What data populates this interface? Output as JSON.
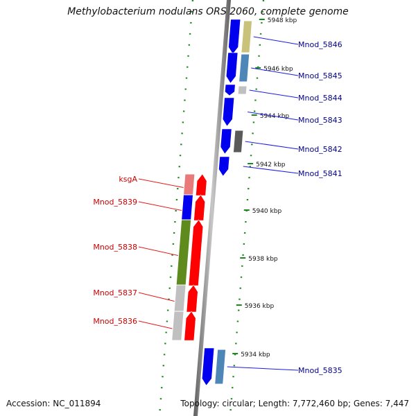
{
  "header": {
    "title": "Methylobacterium nodulans ORS 2060, complete genome"
  },
  "footer": {
    "accession": "Accession: NC_011894",
    "topology": "Topology: circular; Length: 7,772,460 bp; Genes: 7,447"
  },
  "ticks": [
    "5948 kbp",
    "5946 kbp",
    "5944 kbp",
    "5942 kbp",
    "5940 kbp",
    "5938 kbp",
    "5936 kbp",
    "5934 kbp"
  ],
  "genes": [
    {
      "name": "Mnod_5846",
      "strand": "forward",
      "feature_color": "#c8c27a"
    },
    {
      "name": "Mnod_5845",
      "strand": "forward",
      "feature_color": "#4f86b8"
    },
    {
      "name": "Mnod_5844",
      "strand": "forward",
      "feature_color": "#c0c0c0"
    },
    {
      "name": "Mnod_5843",
      "strand": "forward",
      "feature_color": ""
    },
    {
      "name": "Mnod_5842",
      "strand": "forward",
      "feature_color": "#5a5a5a"
    },
    {
      "name": "Mnod_5841",
      "strand": "forward",
      "feature_color": ""
    },
    {
      "name": "ksgA",
      "strand": "reverse",
      "feature_color": "#e87a7a"
    },
    {
      "name": "Mnod_5839",
      "strand": "reverse",
      "feature_color": "#0000ee"
    },
    {
      "name": "Mnod_5838",
      "strand": "reverse",
      "feature_color": "#5e8a1e"
    },
    {
      "name": "Mnod_5837",
      "strand": "reverse",
      "feature_color": "#c0c0c0"
    },
    {
      "name": "Mnod_5836",
      "strand": "reverse",
      "feature_color": "#c0c0c0"
    },
    {
      "name": "Mnod_5835",
      "strand": "forward",
      "feature_color": "#4f86b8"
    }
  ],
  "colors": {
    "forward_gene": "#0000ee",
    "reverse_gene": "#ff0000",
    "forward_label": "#00008b",
    "reverse_label": "#cc0000",
    "backbone": "#808080",
    "tick": "#1a8a1a"
  }
}
